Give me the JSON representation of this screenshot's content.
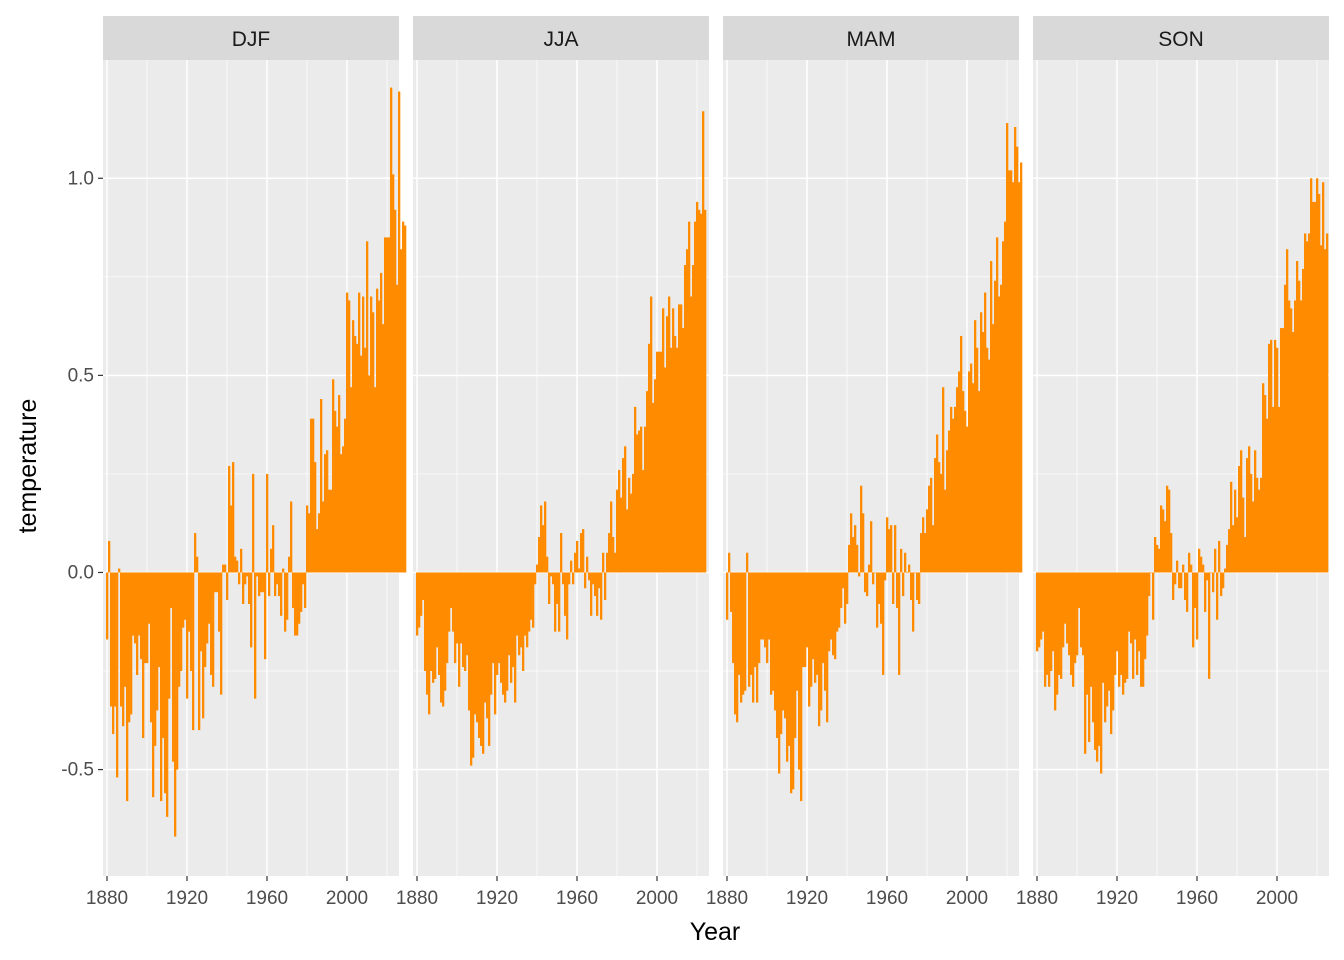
{
  "chart_data": {
    "type": "bar",
    "facet_by": "season",
    "xlabel": "Year",
    "ylabel": "temperature",
    "xlim": [
      1878,
      2026
    ],
    "ylim": [
      -0.77,
      1.3
    ],
    "x_ticks": [
      1880,
      1920,
      1960,
      2000
    ],
    "y_ticks": [
      -0.5,
      0.0,
      0.5,
      1.0
    ],
    "y_tick_labels": [
      "-0.5",
      "0.0",
      "0.5",
      "1.0"
    ],
    "grid": true,
    "bar_color": "#FF8C00",
    "panel_background": "#EBEBEB",
    "strip_background": "#D9D9D9",
    "year_start": 1880,
    "panels": [
      {
        "name": "DJF",
        "values": [
          -0.17,
          0.08,
          -0.34,
          -0.41,
          -0.34,
          -0.52,
          0.01,
          -0.34,
          -0.39,
          -0.29,
          -0.58,
          -0.38,
          -0.36,
          -0.16,
          -0.18,
          -0.26,
          -0.16,
          -0.22,
          -0.42,
          -0.23,
          -0.23,
          -0.13,
          -0.38,
          -0.57,
          -0.44,
          -0.35,
          -0.24,
          -0.58,
          -0.42,
          -0.56,
          -0.62,
          -0.32,
          -0.09,
          -0.48,
          -0.67,
          -0.5,
          -0.29,
          -0.25,
          -0.14,
          -0.12,
          -0.32,
          -0.15,
          -0.25,
          -0.4,
          0.1,
          0.04,
          -0.4,
          -0.2,
          -0.37,
          -0.24,
          -0.18,
          -0.13,
          -0.26,
          -0.29,
          -0.05,
          -0.05,
          -0.15,
          -0.31,
          0.02,
          0.02,
          -0.07,
          0.27,
          0.17,
          0.28,
          0.04,
          0.03,
          -0.03,
          0.06,
          -0.08,
          -0.03,
          -0.01,
          -0.08,
          -0.19,
          0.25,
          -0.32,
          -0.01,
          -0.06,
          -0.05,
          -0.05,
          -0.22,
          0.25,
          -0.06,
          0.06,
          0.12,
          -0.06,
          -0.03,
          -0.06,
          -0.11,
          0.01,
          -0.15,
          -0.12,
          0.04,
          0.18,
          -0.09,
          -0.16,
          -0.16,
          -0.13,
          -0.1,
          -0.03,
          -0.09,
          0.17,
          0.15,
          0.39,
          0.39,
          0.28,
          0.11,
          0.15,
          0.44,
          0.18,
          0.3,
          0.31,
          0.21,
          0.21,
          0.49,
          0.41,
          0.37,
          0.45,
          0.3,
          0.32,
          0.39,
          0.71,
          0.69,
          0.47,
          0.64,
          0.6,
          0.58,
          0.71,
          0.55,
          0.7,
          0.57,
          0.84,
          0.5,
          0.7,
          0.66,
          0.47,
          0.72,
          0.69,
          0.76,
          0.63,
          0.85,
          0.85,
          0.85,
          1.23,
          1.01,
          0.92,
          0.73,
          1.22,
          0.82,
          0.89,
          0.88
        ]
      },
      {
        "name": "JJA",
        "values": [
          -0.16,
          -0.14,
          -0.11,
          -0.07,
          -0.25,
          -0.31,
          -0.36,
          -0.25,
          -0.28,
          -0.27,
          -0.19,
          -0.26,
          -0.33,
          -0.34,
          -0.3,
          -0.23,
          -0.15,
          -0.09,
          -0.15,
          -0.23,
          -0.18,
          -0.29,
          -0.18,
          -0.24,
          -0.25,
          -0.21,
          -0.35,
          -0.49,
          -0.47,
          -0.36,
          -0.38,
          -0.42,
          -0.44,
          -0.46,
          -0.33,
          -0.37,
          -0.44,
          -0.31,
          -0.23,
          -0.36,
          -0.26,
          -0.23,
          -0.28,
          -0.31,
          -0.33,
          -0.3,
          -0.21,
          -0.28,
          -0.24,
          -0.33,
          -0.16,
          -0.21,
          -0.19,
          -0.25,
          -0.16,
          -0.19,
          -0.15,
          -0.12,
          -0.14,
          -0.03,
          0.02,
          0.09,
          0.17,
          0.12,
          0.18,
          0.04,
          -0.08,
          -0.01,
          -0.03,
          -0.15,
          -0.08,
          -0.15,
          0.1,
          -0.03,
          -0.11,
          -0.17,
          -0.03,
          0.03,
          -0.03,
          0.05,
          0.08,
          0.01,
          0.1,
          0.11,
          -0.04,
          0.04,
          -0.02,
          -0.11,
          -0.03,
          -0.06,
          -0.11,
          -0.04,
          -0.12,
          0.05,
          -0.07,
          0.05,
          0.1,
          0.18,
          0.09,
          0.05,
          0.21,
          0.26,
          0.19,
          0.29,
          0.32,
          0.16,
          0.24,
          0.2,
          0.25,
          0.42,
          0.35,
          0.36,
          0.37,
          0.26,
          0.37,
          0.46,
          0.58,
          0.7,
          0.43,
          0.49,
          0.56,
          0.56,
          0.56,
          0.67,
          0.52,
          0.65,
          0.7,
          0.57,
          0.67,
          0.6,
          0.57,
          0.68,
          0.68,
          0.62,
          0.78,
          0.82,
          0.89,
          0.7,
          0.78,
          0.89,
          0.94,
          0.92,
          0.91,
          1.17,
          0.92
        ]
      },
      {
        "name": "MAM",
        "values": [
          -0.12,
          0.05,
          -0.1,
          -0.23,
          -0.36,
          -0.38,
          -0.26,
          -0.33,
          -0.31,
          -0.3,
          0.05,
          -0.29,
          -0.26,
          -0.33,
          -0.24,
          -0.33,
          -0.23,
          -0.17,
          -0.17,
          -0.19,
          -0.23,
          -0.17,
          -0.31,
          -0.3,
          -0.35,
          -0.42,
          -0.51,
          -0.41,
          -0.35,
          -0.37,
          -0.48,
          -0.44,
          -0.56,
          -0.55,
          -0.42,
          -0.3,
          -0.5,
          -0.58,
          -0.24,
          -0.24,
          -0.19,
          -0.34,
          -0.29,
          -0.22,
          -0.28,
          -0.26,
          -0.39,
          -0.35,
          -0.23,
          -0.3,
          -0.38,
          -0.2,
          -0.17,
          -0.21,
          -0.22,
          -0.15,
          -0.14,
          -0.09,
          -0.04,
          -0.13,
          -0.08,
          0.07,
          0.15,
          0.09,
          0.12,
          0.07,
          -0.01,
          0.22,
          0.15,
          -0.05,
          -0.06,
          0.02,
          0.13,
          -0.03,
          0.0,
          -0.14,
          -0.08,
          -0.13,
          -0.26,
          -0.02,
          0.14,
          0.11,
          0.12,
          -0.08,
          0.12,
          -0.09,
          -0.26,
          0.06,
          -0.06,
          0.05,
          0.0,
          0.02,
          -0.07,
          -0.15,
          0.0,
          -0.07,
          -0.08,
          0.1,
          0.14,
          0.1,
          0.16,
          0.22,
          0.24,
          0.12,
          0.29,
          0.35,
          0.28,
          0.25,
          0.47,
          0.21,
          0.31,
          0.36,
          0.42,
          0.39,
          0.42,
          0.47,
          0.51,
          0.6,
          0.46,
          0.41,
          0.37,
          0.51,
          0.53,
          0.48,
          0.64,
          0.57,
          0.46,
          0.66,
          0.61,
          0.71,
          0.57,
          0.54,
          0.79,
          0.63,
          0.74,
          0.85,
          0.7,
          0.73,
          0.84,
          0.89,
          1.14,
          1.02,
          1.02,
          0.99,
          1.13,
          1.08,
          0.99,
          1.04
        ]
      },
      {
        "name": "SON",
        "values": [
          -0.2,
          -0.19,
          -0.17,
          -0.15,
          -0.29,
          -0.26,
          -0.29,
          -0.25,
          -0.2,
          -0.35,
          -0.31,
          -0.26,
          -0.27,
          -0.19,
          -0.13,
          -0.18,
          -0.21,
          -0.26,
          -0.29,
          -0.23,
          -0.21,
          -0.09,
          -0.19,
          -0.21,
          -0.46,
          -0.31,
          -0.43,
          -0.29,
          -0.38,
          -0.45,
          -0.48,
          -0.44,
          -0.51,
          -0.28,
          -0.38,
          -0.34,
          -0.3,
          -0.41,
          -0.35,
          -0.26,
          -0.2,
          -0.29,
          -0.26,
          -0.31,
          -0.28,
          -0.27,
          -0.15,
          -0.18,
          -0.27,
          -0.17,
          -0.26,
          -0.2,
          -0.29,
          -0.29,
          -0.22,
          -0.16,
          -0.06,
          0.0,
          -0.12,
          0.09,
          0.07,
          0.06,
          0.17,
          0.16,
          0.13,
          0.22,
          0.21,
          0.1,
          -0.07,
          -0.03,
          0.03,
          -0.04,
          -0.04,
          0.02,
          -0.07,
          -0.1,
          0.05,
          0.02,
          -0.19,
          -0.09,
          -0.17,
          0.06,
          0.04,
          0.02,
          -0.1,
          -0.02,
          -0.27,
          0.0,
          -0.05,
          0.06,
          -0.12,
          0.08,
          -0.06,
          -0.04,
          0.01,
          0.07,
          0.11,
          0.23,
          0.12,
          0.21,
          0.14,
          0.27,
          0.31,
          0.19,
          0.09,
          0.29,
          0.32,
          0.25,
          0.18,
          0.31,
          0.24,
          0.21,
          0.24,
          0.48,
          0.45,
          0.39,
          0.58,
          0.59,
          0.42,
          0.59,
          0.57,
          0.42,
          0.62,
          0.62,
          0.73,
          0.82,
          0.69,
          0.67,
          0.61,
          0.69,
          0.79,
          0.74,
          0.69,
          0.77,
          0.86,
          0.84,
          0.86,
          1.0,
          0.94,
          0.94,
          1.0,
          0.96,
          0.83,
          0.99,
          0.82,
          0.86
        ]
      }
    ]
  }
}
